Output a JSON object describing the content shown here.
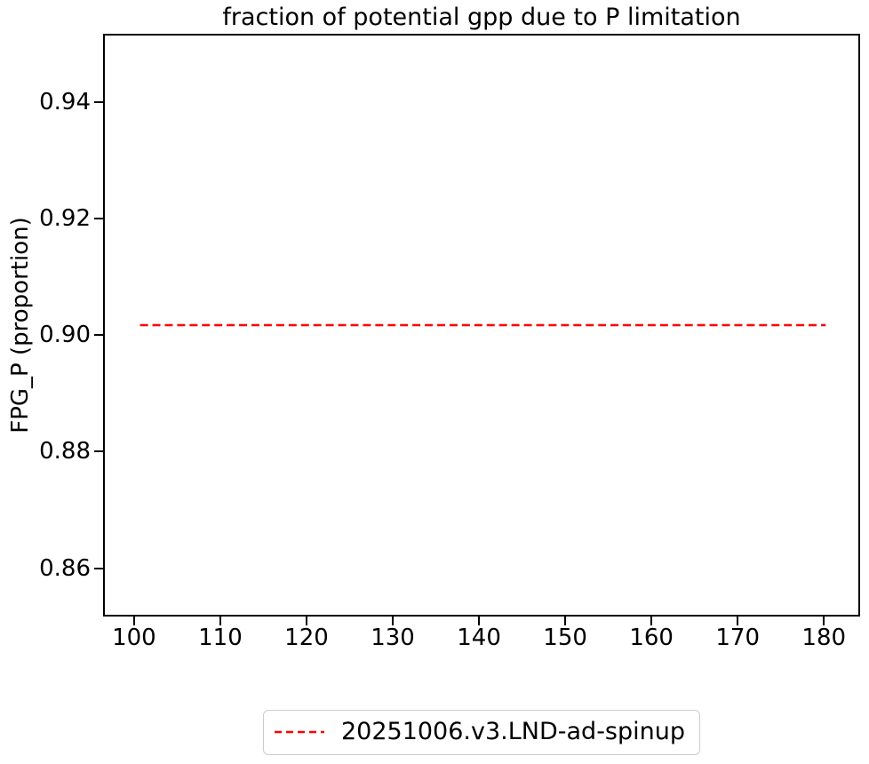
{
  "chart_data": {
    "type": "line",
    "title": "fraction of potential gpp due to P limitation",
    "xlabel": "",
    "ylabel": "FPG_P (proportion)",
    "xlim": [
      96.4,
      184.2
    ],
    "ylim": [
      0.8517,
      0.9517
    ],
    "xticks": [
      100,
      110,
      120,
      130,
      140,
      150,
      160,
      170,
      180
    ],
    "xtick_labels": [
      "100",
      "110",
      "120",
      "130",
      "140",
      "150",
      "160",
      "170",
      "180"
    ],
    "yticks": [
      0.86,
      0.88,
      0.9,
      0.92,
      0.94
    ],
    "ytick_labels": [
      "0.86",
      "0.88",
      "0.90",
      "0.92",
      "0.94"
    ],
    "grid": false,
    "legend_position": "below center",
    "series": [
      {
        "name": "20251006.v3.LND-ad-spinup",
        "color": "#ff0000",
        "linestyle": "dashed",
        "x": [
          100.5,
          180.4
        ],
        "y": [
          0.9017,
          0.9017
        ]
      }
    ]
  },
  "colors": {
    "axis": "#000000",
    "line_red": "#ff0000",
    "legend_border": "#cccccc"
  }
}
